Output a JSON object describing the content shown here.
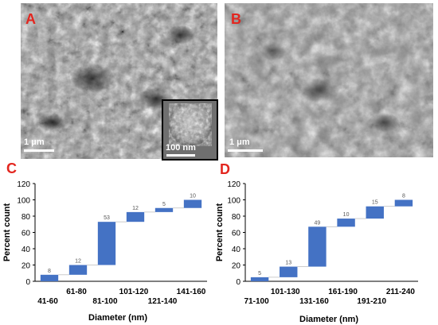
{
  "panels": {
    "a": {
      "letter": "A",
      "scale_label": "1 μm",
      "inset_scale_label": "100 nm"
    },
    "b": {
      "letter": "B",
      "scale_label": "1 μm"
    }
  },
  "colors": {
    "bar": "#4472c4",
    "panel_letter": "#e3261f",
    "connector": "#bfbfbf"
  },
  "chart_data": [
    {
      "letter": "C",
      "type": "bar",
      "subtype": "waterfall",
      "ylabel": "Percent count",
      "xlabel": "Diameter  (nm)",
      "ylim": [
        0,
        120
      ],
      "yticks": [
        0,
        20,
        40,
        60,
        80,
        100,
        120
      ],
      "grid": false,
      "categories": [
        "41-60",
        "61-80",
        "81-100",
        "101-120",
        "121-140",
        "141-160"
      ],
      "values": [
        8,
        12,
        53,
        12,
        5,
        10
      ],
      "value_labels": [
        "8",
        "12",
        "53",
        "12",
        "5",
        "10"
      ]
    },
    {
      "letter": "D",
      "type": "bar",
      "subtype": "waterfall",
      "ylabel": "Percent count",
      "xlabel": "Diameter  (nm)",
      "ylim": [
        0,
        120
      ],
      "yticks": [
        0,
        20,
        40,
        60,
        80,
        100,
        120
      ],
      "grid": false,
      "categories": [
        "71-100",
        "101-130",
        "131-160",
        "161-190",
        "191-210",
        "211-240"
      ],
      "values": [
        5,
        13,
        49,
        10,
        15,
        8
      ],
      "value_labels": [
        "5",
        "13",
        "49",
        "10",
        "15",
        "8"
      ]
    }
  ]
}
